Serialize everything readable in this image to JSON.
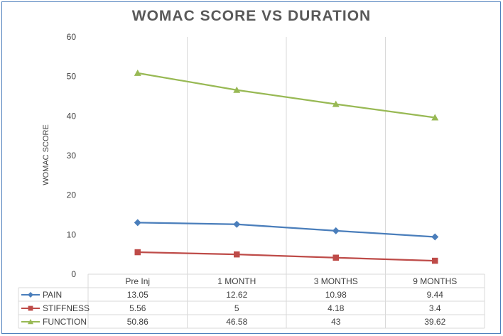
{
  "chart_data": {
    "type": "line",
    "title": "WOMAC SCORE VS DURATION",
    "ylabel": "WOMAC SCORE",
    "xlabel": "",
    "ylim": [
      0,
      60
    ],
    "yticks": [
      0,
      10,
      20,
      30,
      40,
      50,
      60
    ],
    "grid": "vertical",
    "legend": "data-table-bottom",
    "categories": [
      "Pre Inj",
      "1 MONTH",
      "3 MONTHS",
      "9 MONTHS"
    ],
    "series": [
      {
        "name": "PAIN",
        "values": [
          13.05,
          12.62,
          10.98,
          9.44
        ],
        "display": [
          "13.05",
          "12.62",
          "10.98",
          "9.44"
        ],
        "color": "#4a7ebb",
        "marker": "diamond"
      },
      {
        "name": "STIFFNESS",
        "values": [
          5.56,
          5,
          4.18,
          3.4
        ],
        "display": [
          "5.56",
          "5",
          "4.18",
          "3.4"
        ],
        "color": "#be4b48",
        "marker": "square"
      },
      {
        "name": "FUNCTION",
        "values": [
          50.86,
          46.58,
          43,
          39.62
        ],
        "display": [
          "50.86",
          "46.58",
          "43",
          "39.62"
        ],
        "color": "#98b954",
        "marker": "triangle"
      }
    ]
  }
}
